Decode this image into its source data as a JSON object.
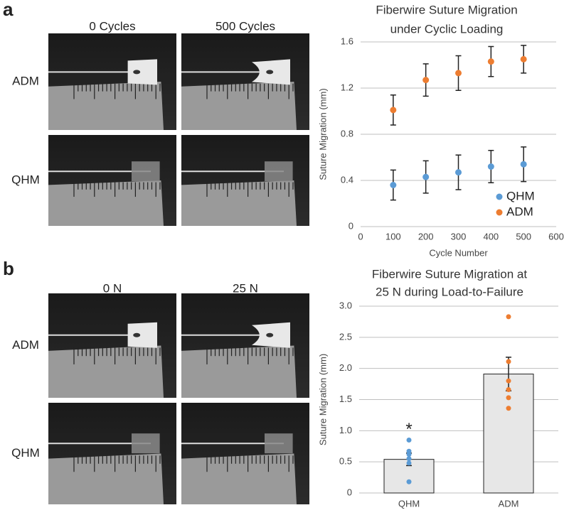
{
  "panels": [
    {
      "label": "a",
      "columns": [
        "0 Cycles",
        "500 Cycles"
      ],
      "rows": [
        "ADM",
        "QHM"
      ]
    },
    {
      "label": "b",
      "columns": [
        "0 N",
        "25 N"
      ],
      "rows": [
        "ADM",
        "QHM"
      ]
    }
  ],
  "chart_data": [
    {
      "type": "scatter",
      "title": [
        "Fiberwire Suture Migration",
        "under Cyclic Loading"
      ],
      "x_label": "Cycle Number",
      "y_label": "Suture Migration (mm)",
      "xlim": [
        0,
        600
      ],
      "xticks": [
        0,
        100,
        200,
        300,
        400,
        500,
        600
      ],
      "ylim": [
        0,
        1.6
      ],
      "yticks": [
        0,
        0.4,
        0.8,
        1.2,
        1.6
      ],
      "grid": true,
      "legend": "lower right",
      "series": [
        {
          "name": "QHM",
          "color": "#5b9bd5",
          "x": [
            100,
            200,
            300,
            400,
            500
          ],
          "values": [
            0.36,
            0.43,
            0.47,
            0.52,
            0.54
          ],
          "errors": [
            0.13,
            0.14,
            0.15,
            0.14,
            0.15
          ]
        },
        {
          "name": "ADM",
          "color": "#ed7d31",
          "x": [
            100,
            200,
            300,
            400,
            500
          ],
          "values": [
            1.01,
            1.27,
            1.33,
            1.43,
            1.45
          ],
          "errors": [
            0.13,
            0.14,
            0.15,
            0.13,
            0.12
          ]
        }
      ]
    },
    {
      "type": "bar",
      "title": [
        "Fiberwire Suture Migration at",
        "25 N during Load-to-Failure"
      ],
      "y_label": "Suture Migration (mm)",
      "categories": [
        "QHM",
        "ADM"
      ],
      "values": [
        0.54,
        1.91
      ],
      "errors": [
        0.1,
        0.27
      ],
      "colors": [
        "#5b9bd5",
        "#ed7d31"
      ],
      "bar_color": "#e7e7e7",
      "points": [
        [
          0.18,
          0.48,
          0.55,
          0.62,
          0.67,
          0.85
        ],
        [
          1.36,
          1.53,
          1.66,
          1.8,
          2.11,
          2.83
        ]
      ],
      "annotation": "*",
      "ylim": [
        0,
        3
      ],
      "yticks": [
        0,
        0.5,
        {
          "value": 1,
          "label": "1.0"
        },
        1.5,
        {
          "value": 2,
          "label": "2.0"
        },
        2.5,
        {
          "value": 3,
          "label": "3.0"
        }
      ],
      "grid": true
    }
  ]
}
